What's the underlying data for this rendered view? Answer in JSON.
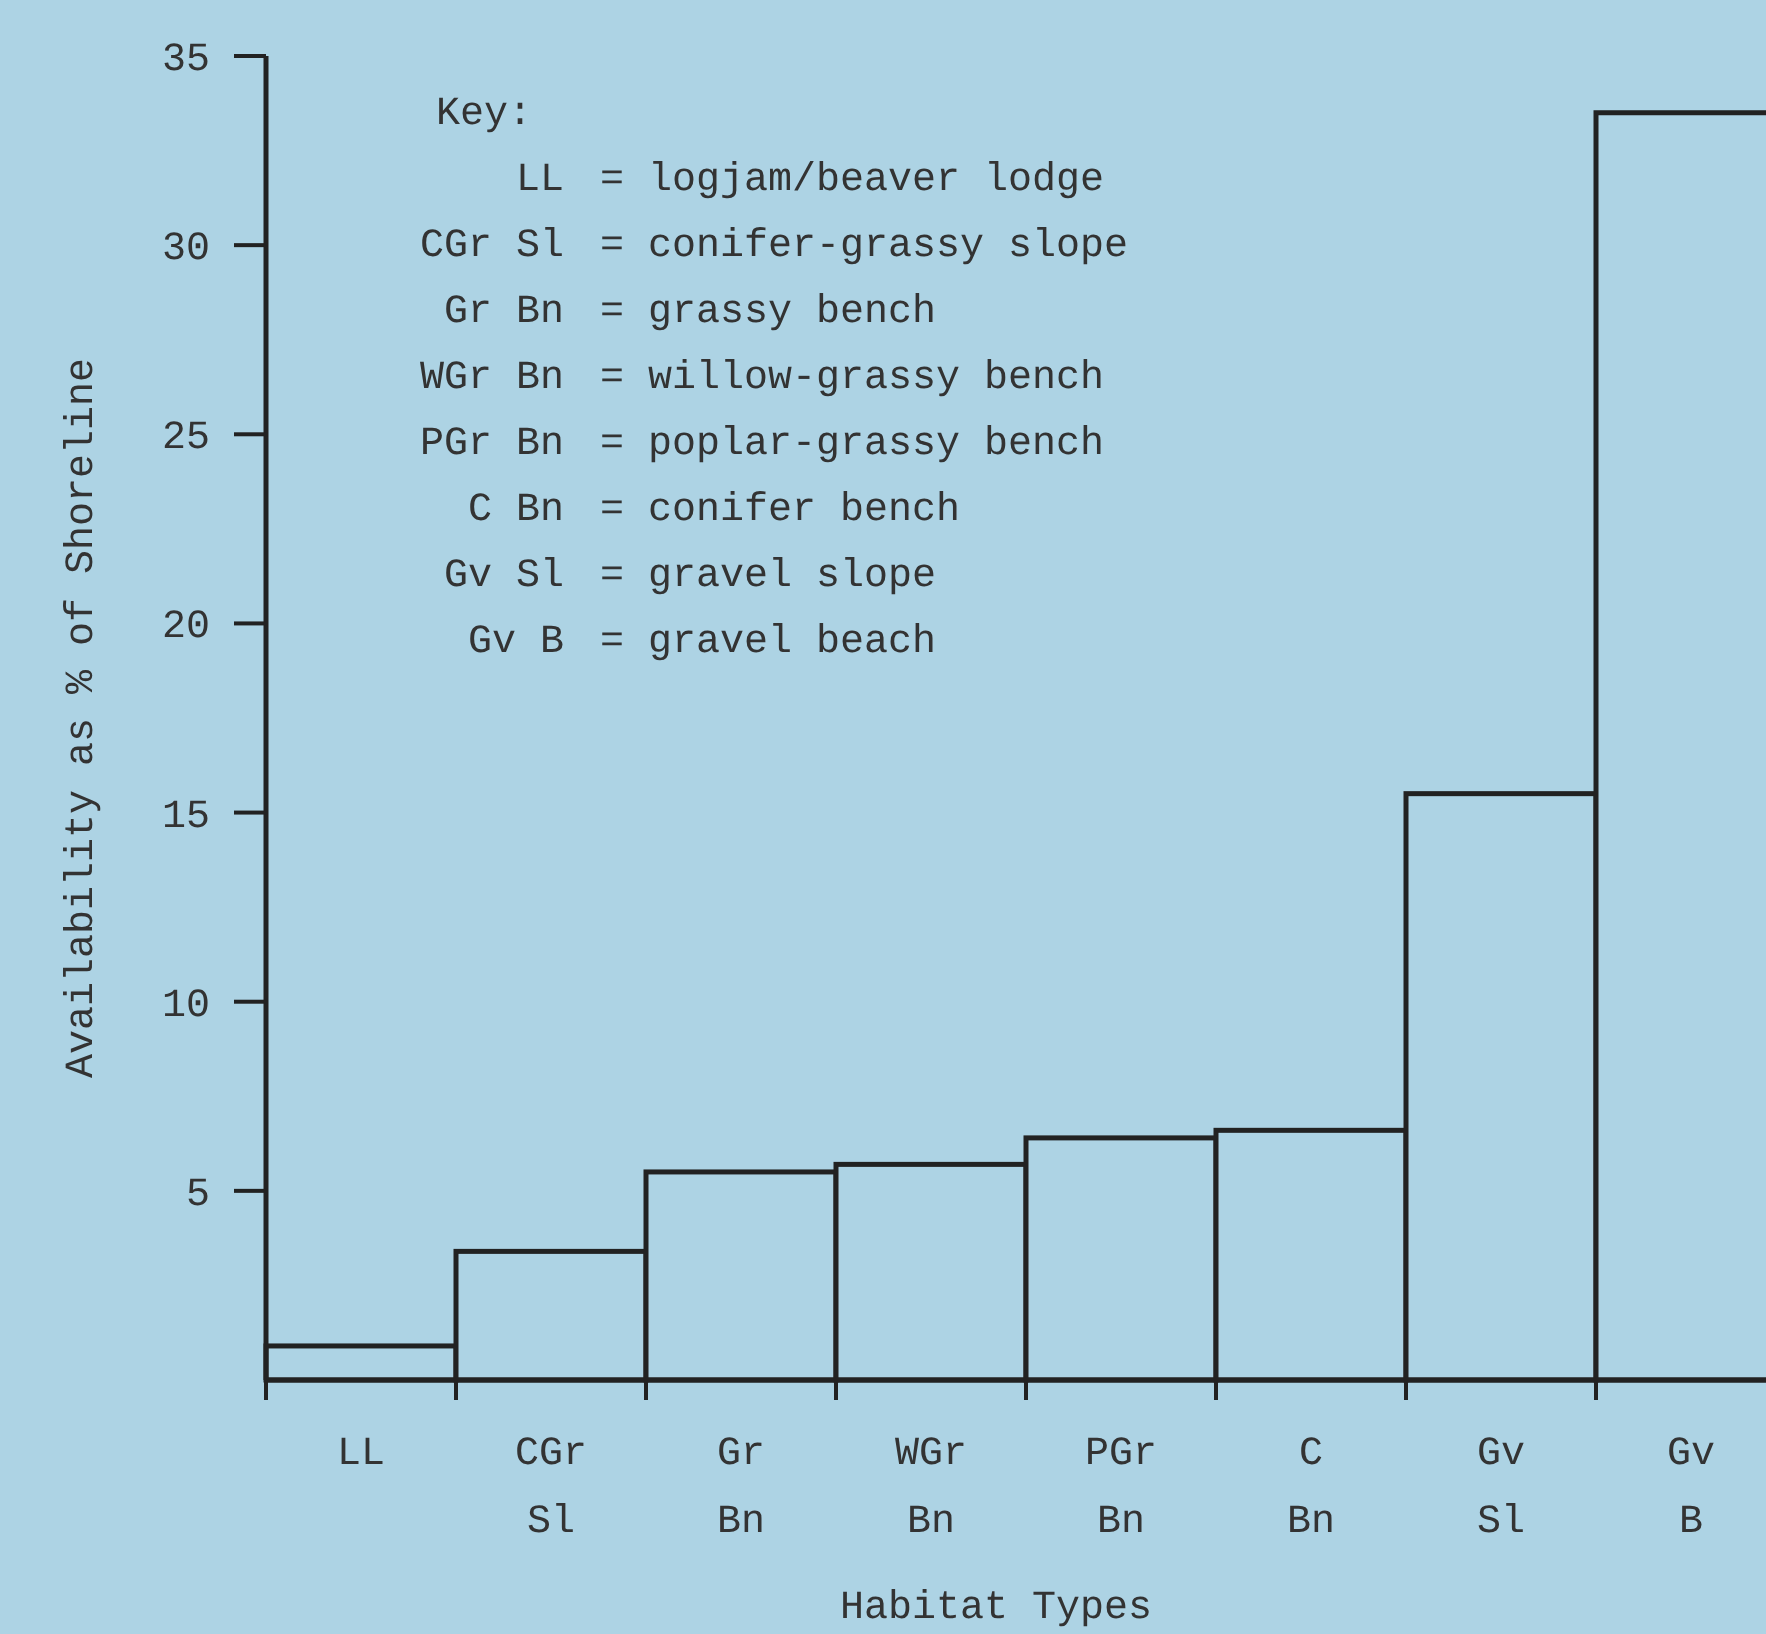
{
  "chart_data": {
    "type": "bar",
    "xlabel": "Habitat Types",
    "ylabel": "Availability as % of Shoreline",
    "categories": [
      "LL",
      "CGr Sl",
      "Gr Bn",
      "WGr Bn",
      "PGr Bn",
      "C Bn",
      "Gv Sl",
      "Gv B"
    ],
    "values": [
      0.9,
      3.4,
      5.5,
      5.7,
      6.4,
      6.6,
      15.5,
      33.5
    ],
    "color": "#add3e4",
    "ylim": [
      0,
      35
    ],
    "yticks": [
      5,
      10,
      15,
      20,
      25,
      30,
      35
    ],
    "grid": false,
    "annotations": [
      "Key:",
      "LL = logjam/beaver lodge",
      "CGr Sl = conifer-grassy slope",
      "Gr Bn = grassy bench",
      "WGr Bn = willow-grassy bench",
      "PGr Bn = poplar-grassy bench",
      "C Bn = conifer bench",
      "Gv Sl = gravel slope",
      "Gv B = gravel beach"
    ]
  }
}
